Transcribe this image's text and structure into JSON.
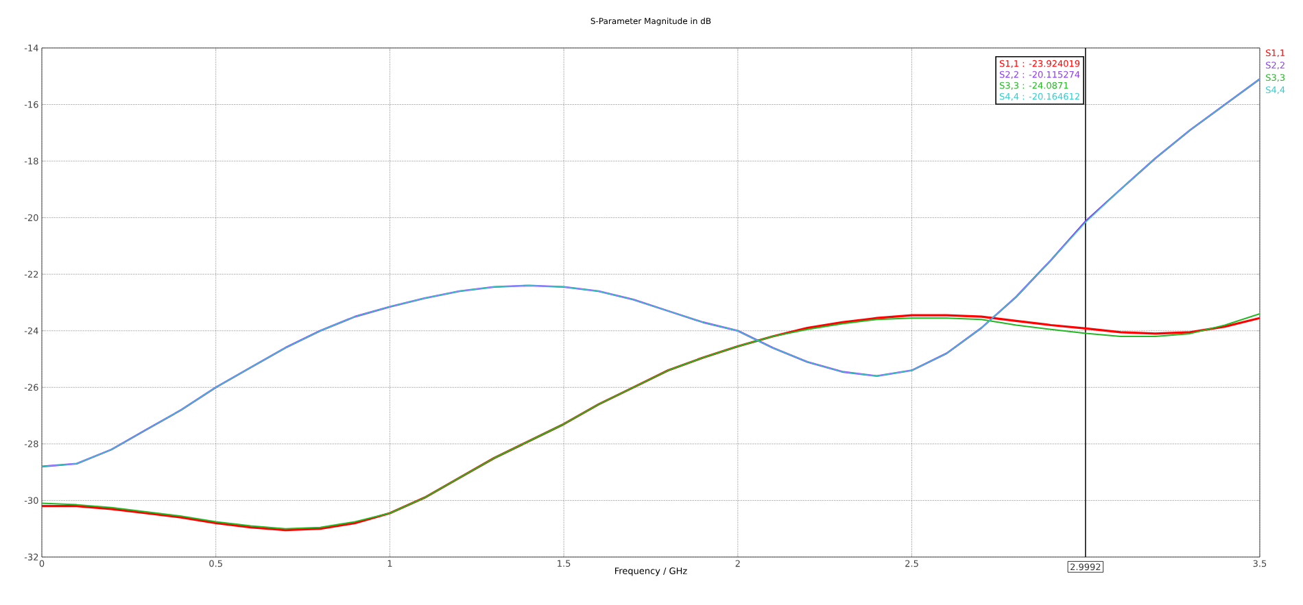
{
  "chart_data": {
    "type": "line",
    "title": "S-Parameter Magnitude in dB",
    "xlabel": "Frequency / GHz",
    "x": [
      0,
      0.1,
      0.2,
      0.3,
      0.4,
      0.5,
      0.6,
      0.7,
      0.8,
      0.9,
      1.0,
      1.1,
      1.2,
      1.3,
      1.4,
      1.5,
      1.6,
      1.7,
      1.8,
      1.9,
      2.0,
      2.1,
      2.2,
      2.3,
      2.4,
      2.5,
      2.6,
      2.7,
      2.8,
      2.9,
      3.0,
      3.1,
      3.2,
      3.3,
      3.4,
      3.5
    ],
    "series": [
      {
        "name": "S1,1",
        "color": "#ff0000",
        "values": [
          -30.2,
          -30.2,
          -30.3,
          -30.45,
          -30.6,
          -30.8,
          -30.95,
          -31.05,
          -31.0,
          -30.8,
          -30.45,
          -29.9,
          -29.2,
          -28.5,
          -27.9,
          -27.3,
          -26.6,
          -26.0,
          -25.4,
          -24.95,
          -24.55,
          -24.2,
          -23.9,
          -23.7,
          -23.55,
          -23.45,
          -23.45,
          -23.5,
          -23.65,
          -23.8,
          -23.92,
          -24.05,
          -24.1,
          -24.05,
          -23.85,
          -23.55
        ]
      },
      {
        "name": "S2,2",
        "color": "#8a3cf0",
        "values": [
          -28.8,
          -28.7,
          -28.2,
          -27.5,
          -26.8,
          -26.0,
          -25.3,
          -24.6,
          -24.0,
          -23.5,
          -23.15,
          -22.85,
          -22.6,
          -22.45,
          -22.4,
          -22.45,
          -22.6,
          -22.9,
          -23.3,
          -23.7,
          -24.0,
          -24.6,
          -25.1,
          -25.45,
          -25.6,
          -25.4,
          -24.8,
          -23.9,
          -22.8,
          -21.5,
          -20.12,
          -19.0,
          -17.9,
          -16.9,
          -16.0,
          -15.1
        ]
      },
      {
        "name": "S3,3",
        "color": "#22b822",
        "values": [
          -30.1,
          -30.15,
          -30.25,
          -30.4,
          -30.55,
          -30.75,
          -30.9,
          -31.0,
          -30.95,
          -30.75,
          -30.45,
          -29.9,
          -29.2,
          -28.5,
          -27.9,
          -27.3,
          -26.6,
          -26.0,
          -25.4,
          -24.95,
          -24.55,
          -24.2,
          -23.95,
          -23.75,
          -23.6,
          -23.55,
          -23.55,
          -23.6,
          -23.8,
          -23.95,
          -24.09,
          -24.2,
          -24.2,
          -24.1,
          -23.8,
          -23.4
        ]
      },
      {
        "name": "S4,4",
        "color": "#33cccc",
        "values": [
          -28.8,
          -28.7,
          -28.2,
          -27.5,
          -26.8,
          -26.0,
          -25.3,
          -24.6,
          -24.0,
          -23.5,
          -23.15,
          -22.85,
          -22.6,
          -22.45,
          -22.4,
          -22.45,
          -22.6,
          -22.9,
          -23.3,
          -23.7,
          -24.0,
          -24.6,
          -25.1,
          -25.45,
          -25.6,
          -25.4,
          -24.8,
          -23.9,
          -22.8,
          -21.5,
          -20.16,
          -19.0,
          -17.9,
          -16.9,
          -16.0,
          -15.1
        ]
      }
    ],
    "xlim": [
      0,
      3.5
    ],
    "ylim": [
      -32,
      -14
    ],
    "xticks": [
      0,
      0.5,
      1,
      1.5,
      2,
      2.5,
      3.5
    ],
    "yticks": [
      -32,
      -30,
      -28,
      -26,
      -24,
      -22,
      -20,
      -18,
      -16,
      -14
    ],
    "grid": true,
    "legend": "right",
    "line_style": "solid",
    "ref_lines": [
      {
        "axis": "x",
        "value": 2.9992,
        "label": "2.9992",
        "color": "#000000"
      }
    ],
    "annotations": [
      "S1,1 : -23.924019",
      "S2,2 : -20.115274",
      "S3,3 : -24.0871",
      "S4,4 : -20.164612"
    ]
  }
}
